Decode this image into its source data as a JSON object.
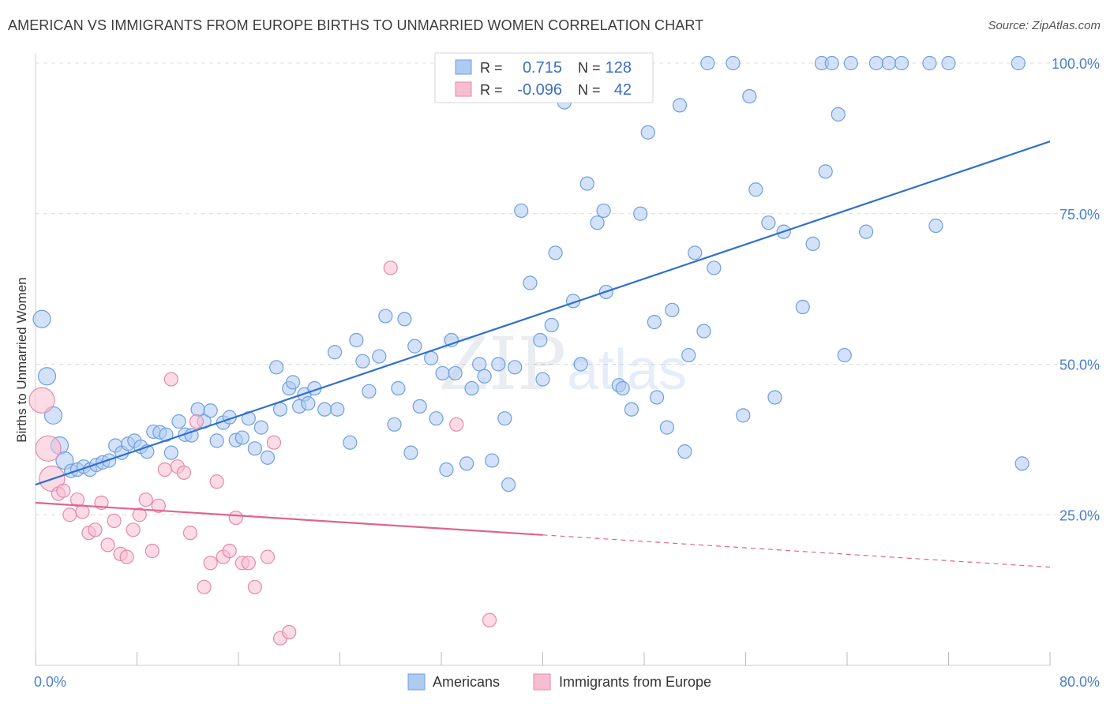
{
  "header": {
    "title": "AMERICAN VS IMMIGRANTS FROM EUROPE BIRTHS TO UNMARRIED WOMEN CORRELATION CHART",
    "source": "Source: ZipAtlas.com"
  },
  "watermark": {
    "zip": "ZIP",
    "atlas": "atlas"
  },
  "chart_data": {
    "type": "scatter",
    "title": "AMERICAN VS IMMIGRANTS FROM EUROPE BIRTHS TO UNMARRIED WOMEN CORRELATION CHART",
    "xlabel": "",
    "ylabel": "Births to Unmarried Women",
    "xlim": [
      0,
      80
    ],
    "ylim": [
      0,
      103
    ],
    "x_ticks": [
      0,
      8,
      16,
      24,
      32,
      40,
      48,
      56,
      64,
      72,
      80
    ],
    "x_tick_labels": [
      {
        "value": 0,
        "label": "0.0%"
      },
      {
        "value": 80,
        "label": "80.0%"
      }
    ],
    "y_tick_labels": [
      {
        "value": 25,
        "label": "25.0%"
      },
      {
        "value": 50,
        "label": "50.0%"
      },
      {
        "value": 75,
        "label": "75.0%"
      },
      {
        "value": 100,
        "label": "100.0%"
      }
    ],
    "grid": "horizontal dashed",
    "legend_position": "top-center",
    "stats": [
      {
        "r_label": "R =",
        "r": "0.715",
        "n_label": "N =",
        "n": "128"
      },
      {
        "r_label": "R =",
        "r": "-0.096",
        "n_label": "N =",
        "n": "42"
      }
    ],
    "series": [
      {
        "name": "Americans",
        "color": "#6e9fe0",
        "fill": "#aecbf2",
        "trend": {
          "x0": 0,
          "y0": 30,
          "x1": 80,
          "y1": 87,
          "solid_until": 80
        },
        "points": [
          [
            0.5,
            57.5
          ],
          [
            0.9,
            48
          ],
          [
            1.4,
            41.5
          ],
          [
            1.9,
            36.5
          ],
          [
            2.3,
            34
          ],
          [
            2.8,
            32.3
          ],
          [
            3.3,
            32.5
          ],
          [
            3.8,
            33
          ],
          [
            4.3,
            32.5
          ],
          [
            4.8,
            33.3
          ],
          [
            5.3,
            33.7
          ],
          [
            5.8,
            34
          ],
          [
            6.3,
            36.5
          ],
          [
            6.8,
            35.3
          ],
          [
            7.3,
            36.8
          ],
          [
            7.8,
            37.3
          ],
          [
            8.3,
            36.3
          ],
          [
            8.8,
            35.5
          ],
          [
            9.3,
            38.8
          ],
          [
            9.8,
            38.7
          ],
          [
            10.3,
            38.3
          ],
          [
            10.7,
            35.3
          ],
          [
            11.3,
            40.5
          ],
          [
            11.8,
            38.3
          ],
          [
            12.3,
            38.2
          ],
          [
            12.8,
            42.5
          ],
          [
            13.3,
            40.5
          ],
          [
            13.8,
            42.3
          ],
          [
            14.3,
            37.3
          ],
          [
            14.8,
            40.3
          ],
          [
            15.3,
            41.2
          ],
          [
            15.8,
            37.4
          ],
          [
            16.3,
            37.8
          ],
          [
            16.8,
            41
          ],
          [
            17.3,
            36
          ],
          [
            17.8,
            39.5
          ],
          [
            18.3,
            34.5
          ],
          [
            19.0,
            49.5
          ],
          [
            19.3,
            42.5
          ],
          [
            20.0,
            46
          ],
          [
            20.3,
            47
          ],
          [
            20.8,
            43
          ],
          [
            21.2,
            45
          ],
          [
            21.5,
            43.5
          ],
          [
            22.0,
            46
          ],
          [
            22.8,
            42.5
          ],
          [
            23.6,
            52
          ],
          [
            23.8,
            42.5
          ],
          [
            24.8,
            37
          ],
          [
            25.3,
            54
          ],
          [
            25.8,
            50.5
          ],
          [
            26.3,
            45.5
          ],
          [
            27.1,
            51.3
          ],
          [
            27.6,
            58
          ],
          [
            28.3,
            40
          ],
          [
            28.6,
            46
          ],
          [
            29.1,
            57.5
          ],
          [
            29.6,
            35.3
          ],
          [
            29.9,
            53
          ],
          [
            30.3,
            43
          ],
          [
            31.2,
            51
          ],
          [
            31.6,
            41
          ],
          [
            32.1,
            48.5
          ],
          [
            32.4,
            32.5
          ],
          [
            32.8,
            54
          ],
          [
            33.1,
            48.5
          ],
          [
            34.0,
            33.5
          ],
          [
            34.4,
            46
          ],
          [
            35.0,
            50
          ],
          [
            35.4,
            48
          ],
          [
            36.0,
            34
          ],
          [
            36.5,
            50
          ],
          [
            37.0,
            41
          ],
          [
            37.3,
            30
          ],
          [
            37.8,
            49.5
          ],
          [
            38.3,
            75.5
          ],
          [
            39.0,
            63.5
          ],
          [
            39.8,
            54
          ],
          [
            40.0,
            47.5
          ],
          [
            40.7,
            56.5
          ],
          [
            41.0,
            68.5
          ],
          [
            41.7,
            93.5
          ],
          [
            42.4,
            60.5
          ],
          [
            43.0,
            50
          ],
          [
            43.5,
            80
          ],
          [
            44.3,
            73.5
          ],
          [
            44.8,
            75.5
          ],
          [
            45.0,
            62
          ],
          [
            46.0,
            46.5
          ],
          [
            46.3,
            46
          ],
          [
            47.0,
            42.5
          ],
          [
            47.7,
            75
          ],
          [
            48.3,
            88.5
          ],
          [
            48.8,
            57
          ],
          [
            49.0,
            44.5
          ],
          [
            49.8,
            39.5
          ],
          [
            50.2,
            59
          ],
          [
            50.8,
            93
          ],
          [
            51.2,
            35.5
          ],
          [
            51.5,
            51.5
          ],
          [
            52.0,
            68.5
          ],
          [
            52.7,
            55.5
          ],
          [
            53.0,
            100
          ],
          [
            53.5,
            66
          ],
          [
            55.0,
            100
          ],
          [
            55.8,
            41.5
          ],
          [
            56.3,
            94.5
          ],
          [
            56.8,
            79
          ],
          [
            57.8,
            73.5
          ],
          [
            58.3,
            44.5
          ],
          [
            59.0,
            72
          ],
          [
            60.5,
            59.5
          ],
          [
            61.3,
            70
          ],
          [
            62.0,
            100
          ],
          [
            62.3,
            82
          ],
          [
            62.8,
            100
          ],
          [
            63.3,
            91.5
          ],
          [
            63.8,
            51.5
          ],
          [
            64.3,
            100
          ],
          [
            65.5,
            72
          ],
          [
            66.3,
            100
          ],
          [
            67.3,
            100
          ],
          [
            68.3,
            100
          ],
          [
            70.5,
            100
          ],
          [
            71.0,
            73
          ],
          [
            72.0,
            100
          ],
          [
            77.5,
            100
          ],
          [
            77.8,
            33.5
          ]
        ]
      },
      {
        "name": "Immigrants from Europe",
        "color": "#e48aa8",
        "fill": "#f7bdd0",
        "trend": {
          "x0": 0,
          "y0": 27,
          "x1": 80,
          "y1": 16.3,
          "solid_until": 40
        },
        "points": [
          [
            0.5,
            44
          ],
          [
            1.0,
            36
          ],
          [
            1.3,
            31
          ],
          [
            1.8,
            28.5
          ],
          [
            2.2,
            29
          ],
          [
            2.7,
            25
          ],
          [
            3.3,
            27.5
          ],
          [
            3.7,
            25.5
          ],
          [
            4.2,
            22
          ],
          [
            4.7,
            22.5
          ],
          [
            5.2,
            27
          ],
          [
            5.7,
            20
          ],
          [
            6.2,
            24
          ],
          [
            6.7,
            18.5
          ],
          [
            7.2,
            18
          ],
          [
            7.7,
            22.5
          ],
          [
            8.2,
            25
          ],
          [
            8.7,
            27.5
          ],
          [
            9.2,
            19
          ],
          [
            9.7,
            26.5
          ],
          [
            10.2,
            32.5
          ],
          [
            10.7,
            47.5
          ],
          [
            11.2,
            33
          ],
          [
            11.7,
            32
          ],
          [
            12.2,
            22
          ],
          [
            12.7,
            40.5
          ],
          [
            13.3,
            13
          ],
          [
            13.8,
            17
          ],
          [
            14.3,
            30.5
          ],
          [
            14.8,
            18
          ],
          [
            15.3,
            19
          ],
          [
            15.8,
            24.5
          ],
          [
            16.3,
            17
          ],
          [
            16.8,
            17
          ],
          [
            17.3,
            13
          ],
          [
            18.3,
            18
          ],
          [
            18.8,
            37
          ],
          [
            19.3,
            4.5
          ],
          [
            20.0,
            5.5
          ],
          [
            28.0,
            66
          ],
          [
            33.2,
            40
          ],
          [
            35.8,
            7.5
          ]
        ]
      }
    ]
  },
  "legend": {
    "items": [
      {
        "label": "Americans"
      },
      {
        "label": "Immigrants from Europe"
      }
    ]
  }
}
